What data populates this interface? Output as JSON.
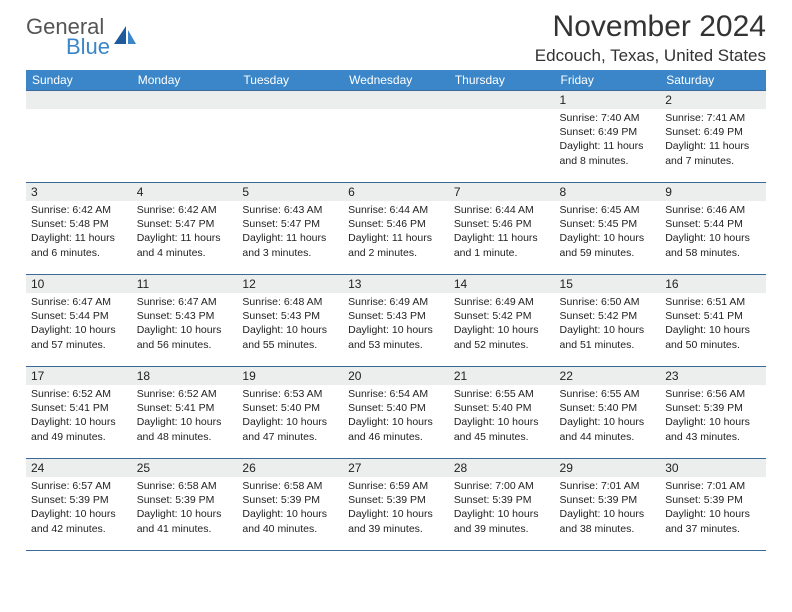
{
  "logo": {
    "text1": "General",
    "text2": "Blue"
  },
  "title": "November 2024",
  "location": "Edcouch, Texas, United States",
  "dayHeaders": [
    "Sunday",
    "Monday",
    "Tuesday",
    "Wednesday",
    "Thursday",
    "Friday",
    "Saturday"
  ],
  "colors": {
    "headerBg": "#3a86c8",
    "border": "#3a6a9a",
    "dayBg": "#eceded"
  },
  "weeks": [
    [
      {
        "n": "",
        "sr": "",
        "ss": "",
        "dl": ""
      },
      {
        "n": "",
        "sr": "",
        "ss": "",
        "dl": ""
      },
      {
        "n": "",
        "sr": "",
        "ss": "",
        "dl": ""
      },
      {
        "n": "",
        "sr": "",
        "ss": "",
        "dl": ""
      },
      {
        "n": "",
        "sr": "",
        "ss": "",
        "dl": ""
      },
      {
        "n": "1",
        "sr": "Sunrise: 7:40 AM",
        "ss": "Sunset: 6:49 PM",
        "dl": "Daylight: 11 hours and 8 minutes."
      },
      {
        "n": "2",
        "sr": "Sunrise: 7:41 AM",
        "ss": "Sunset: 6:49 PM",
        "dl": "Daylight: 11 hours and 7 minutes."
      }
    ],
    [
      {
        "n": "3",
        "sr": "Sunrise: 6:42 AM",
        "ss": "Sunset: 5:48 PM",
        "dl": "Daylight: 11 hours and 6 minutes."
      },
      {
        "n": "4",
        "sr": "Sunrise: 6:42 AM",
        "ss": "Sunset: 5:47 PM",
        "dl": "Daylight: 11 hours and 4 minutes."
      },
      {
        "n": "5",
        "sr": "Sunrise: 6:43 AM",
        "ss": "Sunset: 5:47 PM",
        "dl": "Daylight: 11 hours and 3 minutes."
      },
      {
        "n": "6",
        "sr": "Sunrise: 6:44 AM",
        "ss": "Sunset: 5:46 PM",
        "dl": "Daylight: 11 hours and 2 minutes."
      },
      {
        "n": "7",
        "sr": "Sunrise: 6:44 AM",
        "ss": "Sunset: 5:46 PM",
        "dl": "Daylight: 11 hours and 1 minute."
      },
      {
        "n": "8",
        "sr": "Sunrise: 6:45 AM",
        "ss": "Sunset: 5:45 PM",
        "dl": "Daylight: 10 hours and 59 minutes."
      },
      {
        "n": "9",
        "sr": "Sunrise: 6:46 AM",
        "ss": "Sunset: 5:44 PM",
        "dl": "Daylight: 10 hours and 58 minutes."
      }
    ],
    [
      {
        "n": "10",
        "sr": "Sunrise: 6:47 AM",
        "ss": "Sunset: 5:44 PM",
        "dl": "Daylight: 10 hours and 57 minutes."
      },
      {
        "n": "11",
        "sr": "Sunrise: 6:47 AM",
        "ss": "Sunset: 5:43 PM",
        "dl": "Daylight: 10 hours and 56 minutes."
      },
      {
        "n": "12",
        "sr": "Sunrise: 6:48 AM",
        "ss": "Sunset: 5:43 PM",
        "dl": "Daylight: 10 hours and 55 minutes."
      },
      {
        "n": "13",
        "sr": "Sunrise: 6:49 AM",
        "ss": "Sunset: 5:43 PM",
        "dl": "Daylight: 10 hours and 53 minutes."
      },
      {
        "n": "14",
        "sr": "Sunrise: 6:49 AM",
        "ss": "Sunset: 5:42 PM",
        "dl": "Daylight: 10 hours and 52 minutes."
      },
      {
        "n": "15",
        "sr": "Sunrise: 6:50 AM",
        "ss": "Sunset: 5:42 PM",
        "dl": "Daylight: 10 hours and 51 minutes."
      },
      {
        "n": "16",
        "sr": "Sunrise: 6:51 AM",
        "ss": "Sunset: 5:41 PM",
        "dl": "Daylight: 10 hours and 50 minutes."
      }
    ],
    [
      {
        "n": "17",
        "sr": "Sunrise: 6:52 AM",
        "ss": "Sunset: 5:41 PM",
        "dl": "Daylight: 10 hours and 49 minutes."
      },
      {
        "n": "18",
        "sr": "Sunrise: 6:52 AM",
        "ss": "Sunset: 5:41 PM",
        "dl": "Daylight: 10 hours and 48 minutes."
      },
      {
        "n": "19",
        "sr": "Sunrise: 6:53 AM",
        "ss": "Sunset: 5:40 PM",
        "dl": "Daylight: 10 hours and 47 minutes."
      },
      {
        "n": "20",
        "sr": "Sunrise: 6:54 AM",
        "ss": "Sunset: 5:40 PM",
        "dl": "Daylight: 10 hours and 46 minutes."
      },
      {
        "n": "21",
        "sr": "Sunrise: 6:55 AM",
        "ss": "Sunset: 5:40 PM",
        "dl": "Daylight: 10 hours and 45 minutes."
      },
      {
        "n": "22",
        "sr": "Sunrise: 6:55 AM",
        "ss": "Sunset: 5:40 PM",
        "dl": "Daylight: 10 hours and 44 minutes."
      },
      {
        "n": "23",
        "sr": "Sunrise: 6:56 AM",
        "ss": "Sunset: 5:39 PM",
        "dl": "Daylight: 10 hours and 43 minutes."
      }
    ],
    [
      {
        "n": "24",
        "sr": "Sunrise: 6:57 AM",
        "ss": "Sunset: 5:39 PM",
        "dl": "Daylight: 10 hours and 42 minutes."
      },
      {
        "n": "25",
        "sr": "Sunrise: 6:58 AM",
        "ss": "Sunset: 5:39 PM",
        "dl": "Daylight: 10 hours and 41 minutes."
      },
      {
        "n": "26",
        "sr": "Sunrise: 6:58 AM",
        "ss": "Sunset: 5:39 PM",
        "dl": "Daylight: 10 hours and 40 minutes."
      },
      {
        "n": "27",
        "sr": "Sunrise: 6:59 AM",
        "ss": "Sunset: 5:39 PM",
        "dl": "Daylight: 10 hours and 39 minutes."
      },
      {
        "n": "28",
        "sr": "Sunrise: 7:00 AM",
        "ss": "Sunset: 5:39 PM",
        "dl": "Daylight: 10 hours and 39 minutes."
      },
      {
        "n": "29",
        "sr": "Sunrise: 7:01 AM",
        "ss": "Sunset: 5:39 PM",
        "dl": "Daylight: 10 hours and 38 minutes."
      },
      {
        "n": "30",
        "sr": "Sunrise: 7:01 AM",
        "ss": "Sunset: 5:39 PM",
        "dl": "Daylight: 10 hours and 37 minutes."
      }
    ]
  ]
}
